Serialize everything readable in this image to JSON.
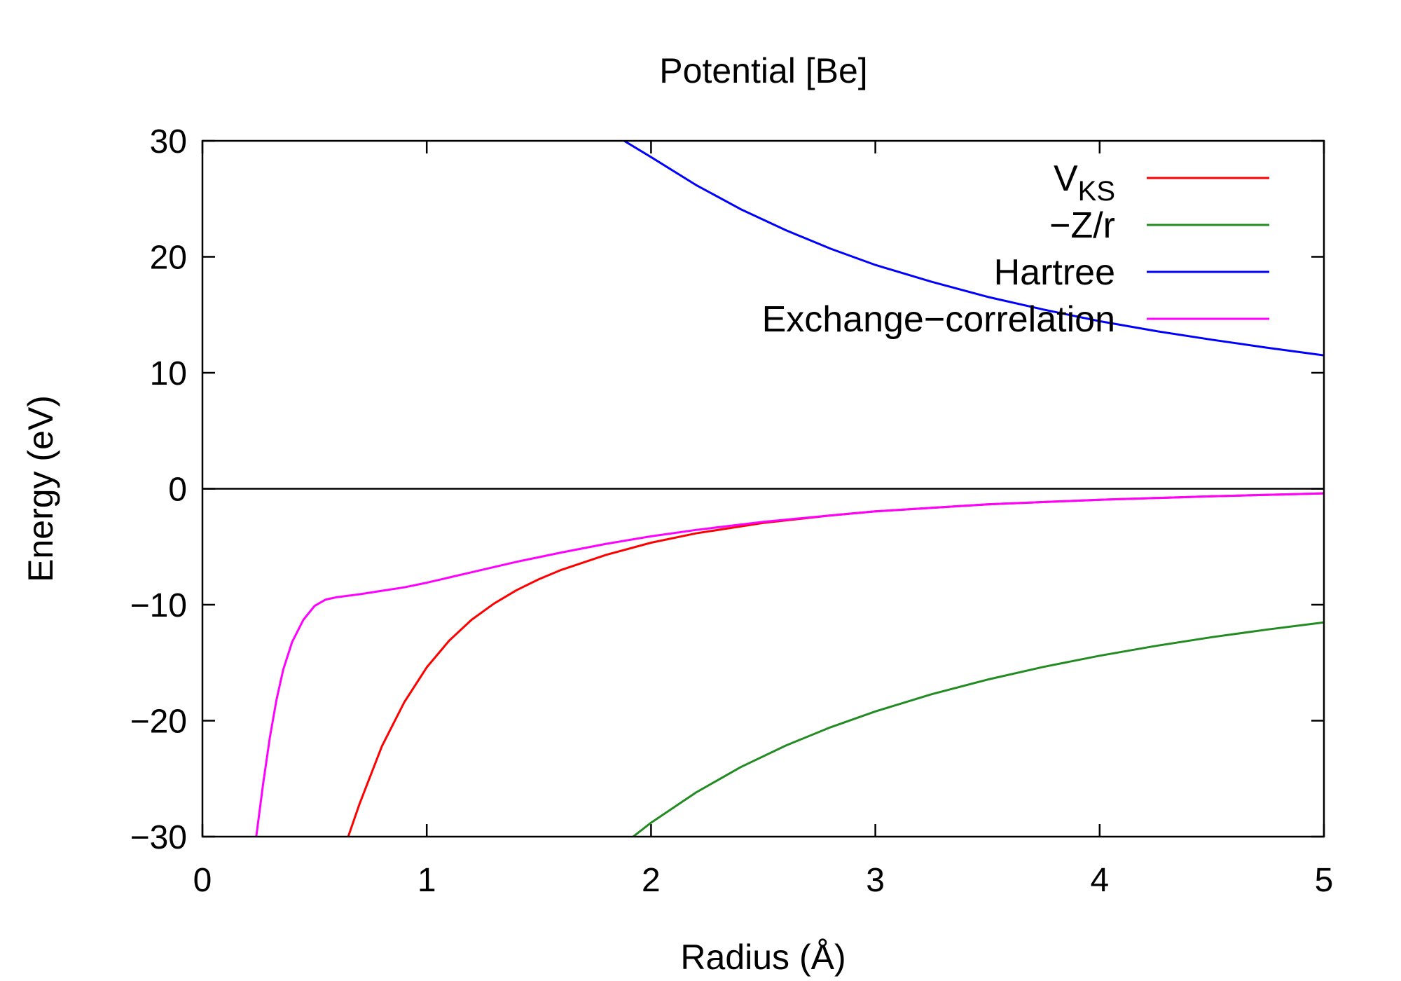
{
  "chart_data": {
    "type": "line",
    "title": "Potential [Be]",
    "xlabel": "Radius (Å)",
    "ylabel": "Energy (eV)",
    "xlim": [
      0,
      5
    ],
    "ylim": [
      -30,
      30
    ],
    "xticks": [
      0,
      1,
      2,
      3,
      4,
      5
    ],
    "yticks": [
      -30,
      -20,
      -10,
      0,
      10,
      20,
      30
    ],
    "xtick_labels": [
      "0",
      "1",
      "2",
      "3",
      "4",
      "5"
    ],
    "ytick_labels": [
      "−30",
      "−20",
      "−10",
      "0",
      "10",
      "20",
      "30"
    ],
    "zero_line": true,
    "grid": false,
    "legend_position": "top-right",
    "series": [
      {
        "name": "V",
        "name_subscript": "KS",
        "color": "#ff0000",
        "points": [
          [
            0.65,
            -30
          ],
          [
            0.7,
            -27.2
          ],
          [
            0.8,
            -22.2
          ],
          [
            0.9,
            -18.4
          ],
          [
            1.0,
            -15.4
          ],
          [
            1.1,
            -13.1
          ],
          [
            1.2,
            -11.3
          ],
          [
            1.3,
            -9.9
          ],
          [
            1.4,
            -8.75
          ],
          [
            1.5,
            -7.8
          ],
          [
            1.6,
            -7.0
          ],
          [
            1.8,
            -5.7
          ],
          [
            2.0,
            -4.65
          ],
          [
            2.2,
            -3.85
          ],
          [
            2.5,
            -2.95
          ],
          [
            2.8,
            -2.3
          ],
          [
            3.0,
            -1.95
          ],
          [
            3.5,
            -1.35
          ],
          [
            4.0,
            -0.95
          ],
          [
            4.5,
            -0.65
          ],
          [
            5.0,
            -0.4
          ]
        ]
      },
      {
        "name": "−Z/r",
        "color": "#228b22",
        "points": [
          [
            1.92,
            -30
          ],
          [
            2.0,
            -28.8
          ],
          [
            2.2,
            -26.2
          ],
          [
            2.4,
            -24.0
          ],
          [
            2.6,
            -22.15
          ],
          [
            2.8,
            -20.57
          ],
          [
            3.0,
            -19.2
          ],
          [
            3.25,
            -17.72
          ],
          [
            3.5,
            -16.46
          ],
          [
            3.75,
            -15.36
          ],
          [
            4.0,
            -14.4
          ],
          [
            4.25,
            -13.55
          ],
          [
            4.5,
            -12.8
          ],
          [
            4.75,
            -12.13
          ],
          [
            5.0,
            -11.52
          ]
        ]
      },
      {
        "name": "Hartree",
        "color": "#0000ff",
        "points": [
          [
            1.88,
            30
          ],
          [
            2.0,
            28.6
          ],
          [
            2.2,
            26.2
          ],
          [
            2.4,
            24.1
          ],
          [
            2.6,
            22.3
          ],
          [
            2.8,
            20.7
          ],
          [
            3.0,
            19.3
          ],
          [
            3.25,
            17.85
          ],
          [
            3.5,
            16.55
          ],
          [
            3.75,
            15.45
          ],
          [
            4.0,
            14.45
          ],
          [
            4.25,
            13.6
          ],
          [
            4.5,
            12.85
          ],
          [
            4.75,
            12.15
          ],
          [
            5.0,
            11.5
          ]
        ]
      },
      {
        "name": "Exchange−correlation",
        "color": "#ff00ff",
        "points": [
          [
            0.24,
            -30
          ],
          [
            0.27,
            -25.5
          ],
          [
            0.3,
            -21.5
          ],
          [
            0.33,
            -18.2
          ],
          [
            0.36,
            -15.6
          ],
          [
            0.4,
            -13.2
          ],
          [
            0.45,
            -11.3
          ],
          [
            0.5,
            -10.1
          ],
          [
            0.55,
            -9.55
          ],
          [
            0.6,
            -9.35
          ],
          [
            0.7,
            -9.1
          ],
          [
            0.8,
            -8.8
          ],
          [
            0.9,
            -8.5
          ],
          [
            1.0,
            -8.1
          ],
          [
            1.2,
            -7.2
          ],
          [
            1.4,
            -6.3
          ],
          [
            1.6,
            -5.5
          ],
          [
            1.8,
            -4.75
          ],
          [
            2.0,
            -4.1
          ],
          [
            2.2,
            -3.55
          ],
          [
            2.5,
            -2.85
          ],
          [
            2.8,
            -2.3
          ],
          [
            3.0,
            -1.95
          ],
          [
            3.5,
            -1.35
          ],
          [
            4.0,
            -0.95
          ],
          [
            4.5,
            -0.65
          ],
          [
            5.0,
            -0.4
          ]
        ]
      }
    ]
  }
}
